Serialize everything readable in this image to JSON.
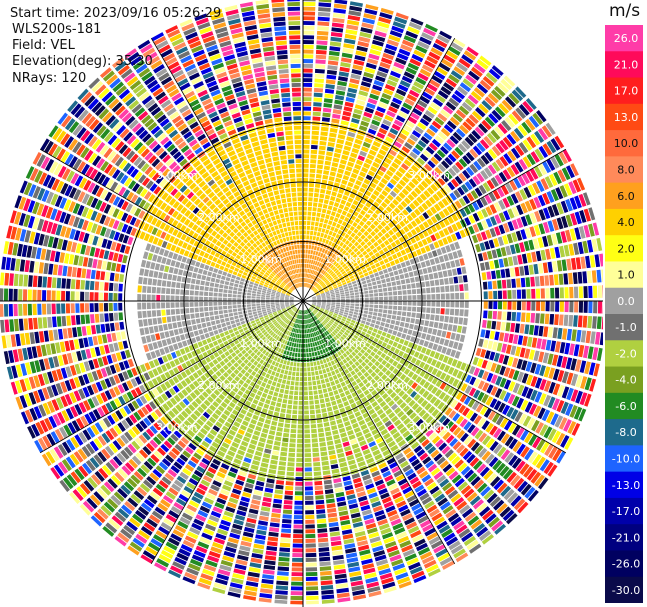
{
  "info": {
    "start_time": "Start time: 2023/09/16 05:26:29",
    "instrument": "WLS200s-181",
    "field": "Field: VEL",
    "elevation": "Elevation(deg): 35.30",
    "nrays": "NRays: 120"
  },
  "colorbar": {
    "unit": "m/s",
    "ticks": [
      "26.0",
      "21.0",
      "17.0",
      "13.0",
      "10.0",
      "8.0",
      "6.0",
      "4.0",
      "2.0",
      "1.0",
      "0.0",
      "-1.0",
      "-2.0",
      "-4.0",
      "-6.0",
      "-8.0",
      "-10.0",
      "-13.0",
      "-17.0",
      "-21.0",
      "-26.0",
      "-30.0"
    ],
    "colors": [
      "#ff3ca8",
      "#ff0a5a",
      "#ff1e1e",
      "#ff4a14",
      "#ff6a3c",
      "#ff8a5a",
      "#ffa01e",
      "#ffd000",
      "#ffff14",
      "#ffff99",
      "#a0a0a0",
      "#707070",
      "#b0d040",
      "#7aa020",
      "#228b22",
      "#1e6a8c",
      "#1e64ff",
      "#0000e6",
      "#0000aa",
      "#000080",
      "#000060",
      "#0a0a4a"
    ]
  },
  "chart_data": {
    "type": "heatmap",
    "projection": "polar PPI",
    "title": "",
    "field": "VEL",
    "unit": "m/s",
    "nrays": 120,
    "elevation_deg": 35.3,
    "vmin": -30.0,
    "vmax": 26.0,
    "range_rings_km": [
      1.0,
      2.0,
      3.0
    ],
    "ring_label_text": [
      "1.00km",
      "2.00km",
      "3.00km"
    ],
    "max_range_km": 5.1,
    "regions": [
      {
        "sector_deg": [
          290,
          70
        ],
        "range_km": [
          0.2,
          3.0
        ],
        "velocity_ms": 4.0
      },
      {
        "sector_deg": [
          315,
          40
        ],
        "range_km": [
          0.2,
          1.0
        ],
        "velocity_ms": 6.0
      },
      {
        "sector_deg": [
          70,
          110
        ],
        "range_km": [
          0.1,
          2.8
        ],
        "velocity_ms": 0.0
      },
      {
        "sector_deg": [
          110,
          250
        ],
        "range_km": [
          0.1,
          3.0
        ],
        "velocity_ms": -2.0
      },
      {
        "sector_deg": [
          140,
          200
        ],
        "range_km": [
          0.1,
          1.0
        ],
        "velocity_ms": -6.0
      },
      {
        "sector_deg": [
          250,
          290
        ],
        "range_km": [
          0.1,
          2.8
        ],
        "velocity_ms": 0.0
      },
      {
        "sector_deg": [
          0,
          360
        ],
        "range_km": [
          3.0,
          5.1
        ],
        "velocity_ms": "noise"
      }
    ]
  }
}
